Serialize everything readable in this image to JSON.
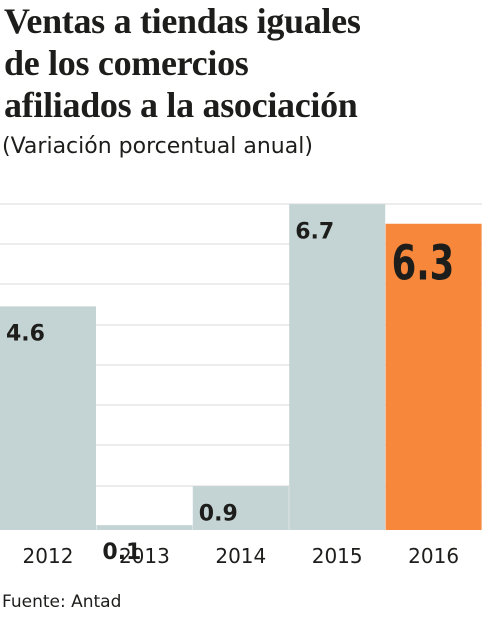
{
  "title_lines": [
    "Ventas a tiendas iguales",
    "de los comercios",
    "afiliados a la asociación"
  ],
  "subtitle": "(Variación porcentual anual)",
  "source": "Fuente: Antad",
  "colors": {
    "bar": "#c4d3d3",
    "highlight": "#f7873a",
    "grid": "#d9d9d9",
    "text": "#1d1d1b"
  },
  "chart_data": {
    "type": "bar",
    "categories": [
      "2012",
      "2013",
      "2014",
      "2015",
      "2016"
    ],
    "values": [
      4.6,
      0.1,
      0.9,
      6.7,
      6.3
    ],
    "value_labels": [
      "4.6",
      "0.1",
      "0.9",
      "6.7",
      "6.3"
    ],
    "highlight_index": 4,
    "grid": true,
    "ylim": [
      0,
      7.2
    ]
  }
}
